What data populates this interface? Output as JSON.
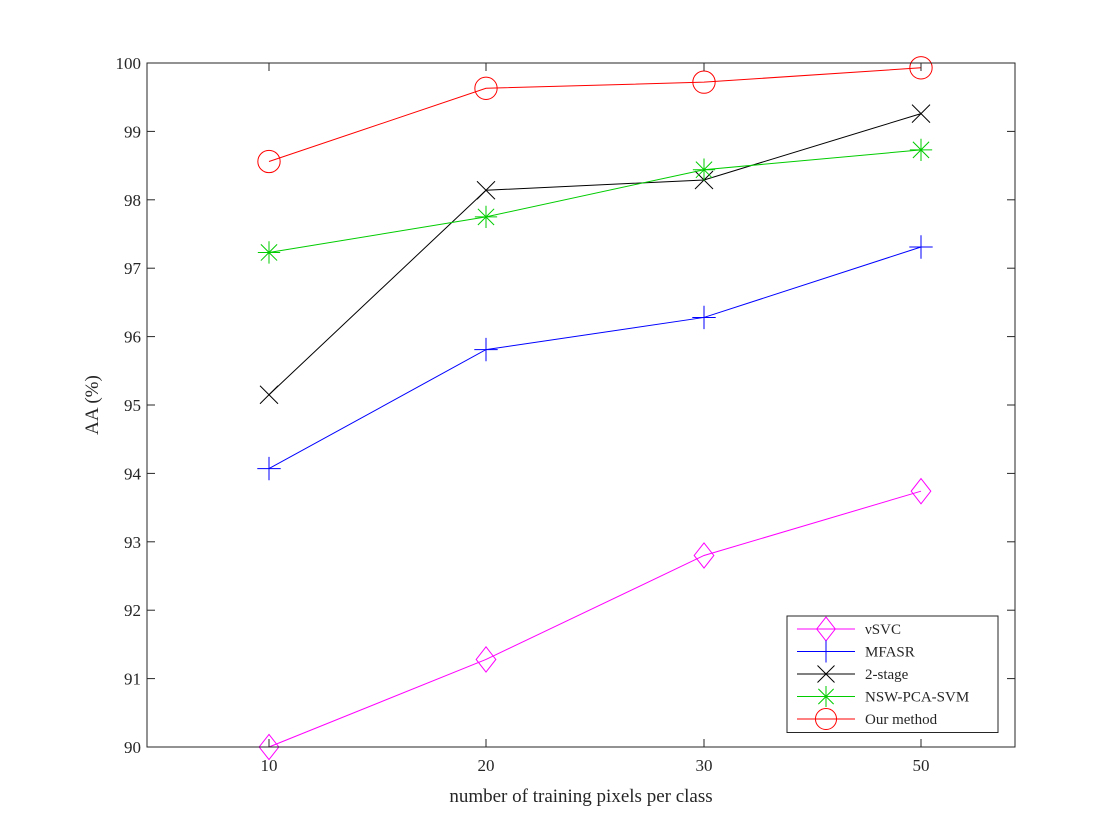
{
  "chart_data": {
    "type": "line",
    "title": "",
    "xlabel": "number of training pixels per class",
    "ylabel": "AA (%)",
    "categories": [
      "10",
      "20",
      "30",
      "50"
    ],
    "ylim": [
      90,
      100
    ],
    "yticks": [
      "90",
      "91",
      "92",
      "93",
      "94",
      "95",
      "96",
      "97",
      "98",
      "99",
      "100"
    ],
    "grid": false,
    "legend_position": "bottom-right",
    "series": [
      {
        "name": "νSVC",
        "color": "#ff00ff",
        "marker": "diamond",
        "values": [
          90.0,
          91.28,
          92.8,
          93.74
        ]
      },
      {
        "name": "MFASR",
        "color": "#0000ff",
        "marker": "plus",
        "values": [
          94.07,
          95.81,
          96.28,
          97.31
        ]
      },
      {
        "name": "2-stage",
        "color": "#000000",
        "marker": "x",
        "values": [
          95.15,
          98.14,
          98.29,
          99.26
        ]
      },
      {
        "name": "NSW-PCA-SVM",
        "color": "#00cc00",
        "marker": "star",
        "values": [
          97.23,
          97.75,
          98.44,
          98.73
        ]
      },
      {
        "name": "Our method",
        "color": "#ff0000",
        "marker": "circle",
        "values": [
          98.56,
          99.63,
          99.72,
          99.93
        ]
      }
    ]
  }
}
